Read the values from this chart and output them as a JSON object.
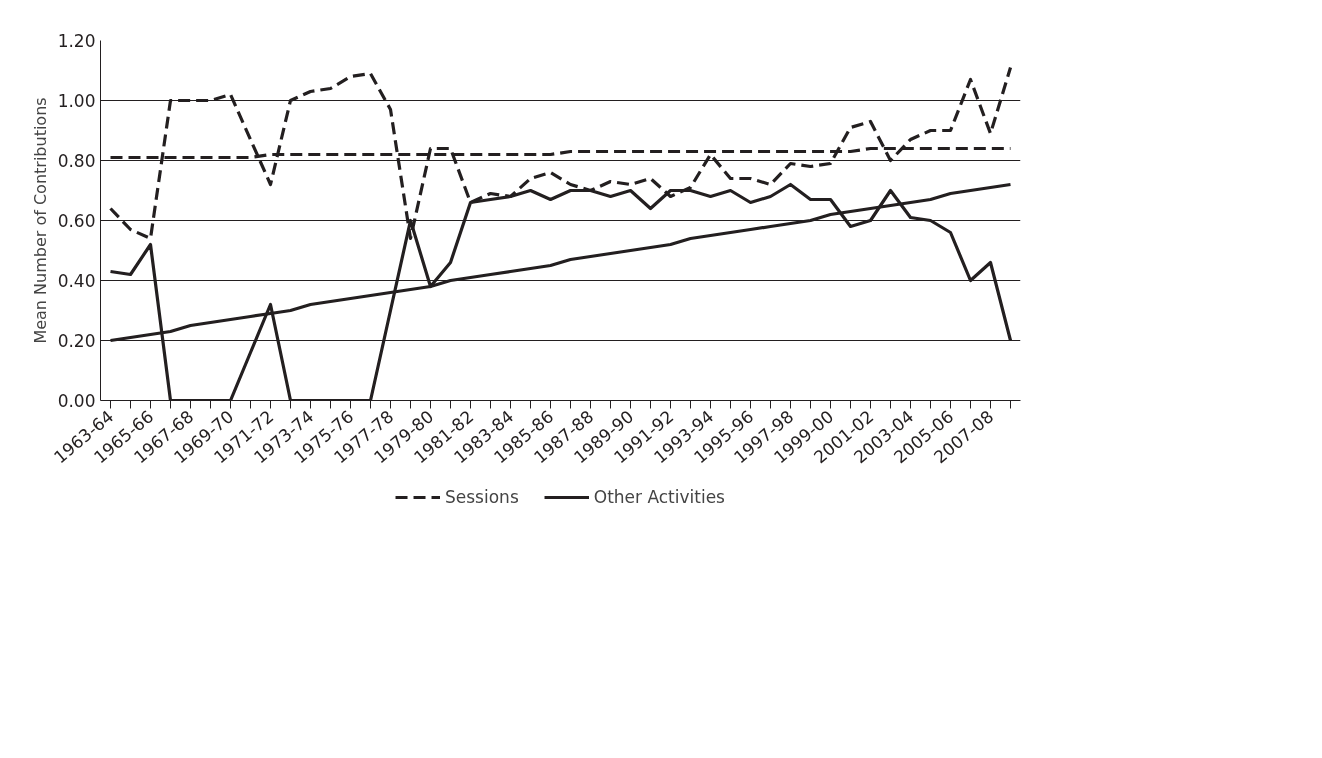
{
  "chart_data": {
    "type": "line",
    "ylabel": "Mean Number of Contributions",
    "categories": [
      "1963-64",
      null,
      "1965-66",
      null,
      "1967-68",
      null,
      "1969-70",
      null,
      "1971-72",
      null,
      "1973-74",
      null,
      "1975-76",
      null,
      "1977-78",
      null,
      "1979-80",
      null,
      "1981-82",
      null,
      "1983-84",
      null,
      "1985-86",
      null,
      "1987-88",
      null,
      "1989-90",
      null,
      "1991-92",
      null,
      "1993-94",
      null,
      "1995-96",
      null,
      "1997-98",
      null,
      "1999-00",
      null,
      "2001-02",
      null,
      "2003-04",
      null,
      "2005-06",
      null,
      "2007-08",
      null
    ],
    "series": [
      {
        "name": "Sessions",
        "color": "#231f20",
        "line_style": "dashed",
        "values": [
          0.64,
          0.57,
          0.54,
          1.0,
          1.0,
          1.0,
          1.02,
          0.87,
          0.72,
          1.0,
          1.03,
          1.04,
          1.08,
          1.09,
          0.97,
          0.54,
          0.84,
          0.84,
          0.66,
          0.69,
          0.68,
          0.74,
          0.76,
          0.72,
          0.7,
          0.73,
          0.72,
          0.74,
          0.68,
          0.71,
          0.82,
          0.74,
          0.74,
          0.72,
          0.79,
          0.78,
          0.79,
          0.91,
          0.93,
          0.8,
          0.87,
          0.9,
          0.9,
          1.07,
          0.89,
          1.11
        ]
      },
      {
        "name": "Other Activities",
        "color": "#231f20",
        "line_style": "solid",
        "values": [
          0.43,
          0.42,
          0.52,
          0,
          0,
          0,
          0,
          0.16,
          0.32,
          0,
          0,
          0,
          0,
          0,
          0.3,
          0.6,
          0.38,
          0.46,
          0.66,
          0.67,
          0.68,
          0.7,
          0.67,
          0.7,
          0.7,
          0.68,
          0.7,
          0.64,
          0.7,
          0.7,
          0.68,
          0.7,
          0.66,
          0.68,
          0.72,
          0.67,
          0.67,
          0.58,
          0.6,
          0.7,
          0.61,
          0.6,
          0.56,
          0.4,
          0.46,
          0.2
        ]
      },
      {
        "color": "#231f20",
        "line_style": "dashed",
        "values": [
          0.81,
          0.81,
          0.81,
          0.81,
          0.81,
          0.81,
          0.81,
          0.81,
          0.82,
          0.82,
          0.82,
          0.82,
          0.82,
          0.82,
          0.82,
          0.82,
          0.82,
          0.82,
          0.82,
          0.82,
          0.82,
          0.82,
          0.82,
          0.83,
          0.83,
          0.83,
          0.83,
          0.83,
          0.83,
          0.83,
          0.83,
          0.83,
          0.83,
          0.83,
          0.83,
          0.83,
          0.83,
          0.83,
          0.84,
          0.84,
          0.84,
          0.84,
          0.84,
          0.84,
          0.84,
          0.84
        ]
      },
      {
        "color": "#231f20",
        "line_style": "solid",
        "values": [
          0.2,
          0.21,
          0.22,
          0.23,
          0.25,
          0.26,
          0.27,
          0.28,
          0.29,
          0.3,
          0.32,
          0.33,
          0.34,
          0.35,
          0.36,
          0.37,
          0.38,
          0.4,
          0.41,
          0.42,
          0.43,
          0.44,
          0.45,
          0.47,
          0.48,
          0.49,
          0.5,
          0.51,
          0.52,
          0.54,
          0.55,
          0.56,
          0.57,
          0.58,
          0.59,
          0.6,
          0.62,
          0.63,
          0.64,
          0.65,
          0.66,
          0.67,
          0.69,
          0.7,
          0.71,
          0.72
        ]
      }
    ],
    "ylim": [
      0,
      1.2
    ],
    "yticks": [
      {
        "value": 0,
        "label": "0.00"
      },
      {
        "value": 0.2,
        "label": "0.20"
      },
      {
        "value": 0.4,
        "label": "0.40"
      },
      {
        "value": 0.6,
        "label": "0.60"
      },
      {
        "value": 0.8,
        "label": "0.80"
      },
      {
        "value": 1.0,
        "label": "1.00"
      },
      {
        "value": 1.2,
        "label": "1.20"
      }
    ],
    "grid": "y",
    "legend": "bottom"
  }
}
